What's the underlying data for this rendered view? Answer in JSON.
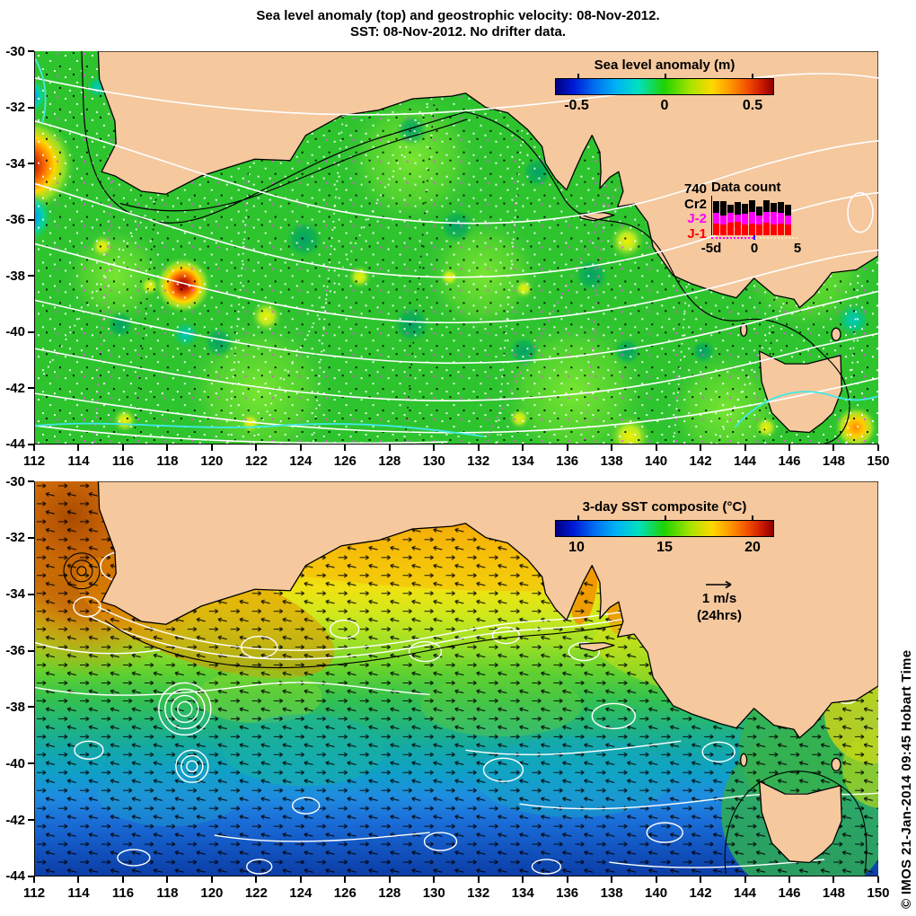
{
  "header": {
    "title_line1": "Sea level anomaly (top) and geostrophic velocity: 08-Nov-2012.",
    "title_line2": "SST: 08-Nov-2012. No drifter data."
  },
  "watermark": "© IMOS 21-Jan-2014 09:45 Hobart Time",
  "axes": {
    "x_ticks": [
      "112",
      "114",
      "116",
      "118",
      "120",
      "122",
      "124",
      "126",
      "128",
      "130",
      "132",
      "134",
      "136",
      "138",
      "140",
      "142",
      "144",
      "146",
      "148",
      "150"
    ],
    "y_ticks": [
      "-30",
      "-32",
      "-34",
      "-36",
      "-38",
      "-40",
      "-42",
      "-44"
    ]
  },
  "sla_panel": {
    "colorbar": {
      "title": "Sea level anomaly (m)",
      "tick_labels": [
        "-0.5",
        "0",
        "0.5"
      ]
    },
    "data_count": {
      "title": "Data count",
      "legend": [
        {
          "label": "740",
          "color": "#000000"
        },
        {
          "label": "Cr2",
          "color": "#000000"
        },
        {
          "label": "J-2",
          "color": "#ff00ff"
        },
        {
          "label": "J-1",
          "color": "#ff0000"
        }
      ],
      "bars": [
        {
          "r": 13,
          "m": 12,
          "k": 13
        },
        {
          "r": 12,
          "m": 10,
          "k": 16
        },
        {
          "r": 14,
          "m": 11,
          "k": 9
        },
        {
          "r": 15,
          "m": 8,
          "k": 14
        },
        {
          "r": 12,
          "m": 12,
          "k": 11
        },
        {
          "r": 13,
          "m": 13,
          "k": 13
        },
        {
          "r": 12,
          "m": 10,
          "k": 10
        },
        {
          "r": 14,
          "m": 12,
          "k": 13
        },
        {
          "r": 12,
          "m": 14,
          "k": 10
        },
        {
          "r": 13,
          "m": 12,
          "k": 12
        },
        {
          "r": 12,
          "m": 10,
          "k": 12
        }
      ],
      "x_tick_labels": [
        "-5d",
        "0",
        "5"
      ]
    }
  },
  "sst_panel": {
    "colorbar": {
      "title": "3-day SST composite (°C)",
      "tick_labels": [
        "10",
        "15",
        "20"
      ]
    },
    "velocity_scale": {
      "label": "1 m/s",
      "sublabel": "(24hrs)"
    }
  },
  "chart_data": [
    {
      "type": "heatmap",
      "title": "Sea level anomaly (top) and geostrophic velocity: 08-Nov-2012.",
      "region": "Southern Australia, Great Australian Bight and Tasmania",
      "xlim": [
        112,
        150
      ],
      "x_ticks": [
        112,
        114,
        116,
        118,
        120,
        122,
        124,
        126,
        128,
        130,
        132,
        134,
        136,
        138,
        140,
        142,
        144,
        146,
        148,
        150
      ],
      "ylim": [
        -44,
        -30
      ],
      "y_ticks": [
        -44,
        -42,
        -40,
        -38,
        -36,
        -34,
        -32,
        -30
      ],
      "colorbar": {
        "label": "Sea level anomaly (m)",
        "ticks": [
          -0.5,
          0,
          0.5
        ],
        "colormap": "jet"
      },
      "notable_features": [
        "strong positive anomaly ~+0.5 m near 112E 34S",
        "positive anomaly ~+0.3 m near 118.5E 38S",
        "negative anomalies near 112E 31.5S and 112E 35.8S",
        "weak anomalies (about 0 to +0.1 m) across most of the Bight",
        "white sea-level contours and altimeter ground-track dots overlaid"
      ]
    },
    {
      "type": "heatmap",
      "title": "SST: 08-Nov-2012. No drifter data.",
      "xlim": [
        112,
        150
      ],
      "x_ticks": [
        112,
        114,
        116,
        118,
        120,
        122,
        124,
        126,
        128,
        130,
        132,
        134,
        136,
        138,
        140,
        142,
        144,
        146,
        148,
        150
      ],
      "ylim": [
        -44,
        -30
      ],
      "y_ticks": [
        -44,
        -42,
        -40,
        -38,
        -36,
        -34,
        -32,
        -30
      ],
      "colorbar": {
        "label": "3-day SST composite (°C)",
        "ticks": [
          10,
          15,
          20
        ],
        "colormap": "jet"
      },
      "notable_features": [
        "warm ~21-22°C water along the west coast near 112-116E (Leeuwin Current)",
        "~19-20°C band along the Bight coast and inside the gulfs",
        "SST decreases southward to ~10°C at 44S",
        "~14-16°C green waters around Tasmania, warmer patch east of Tasmania",
        "geostrophic velocity vectors (black arrows) and white SLA contours overlaid"
      ]
    },
    {
      "type": "bar",
      "title": "Data count",
      "stacked": true,
      "categories_days": [
        -5,
        -4,
        -3,
        -2,
        -1,
        0,
        1,
        2,
        3,
        4,
        5
      ],
      "series": [
        {
          "name": "J-1",
          "color": "#ff0000",
          "values": [
            13,
            12,
            14,
            15,
            12,
            13,
            12,
            14,
            12,
            13,
            12
          ]
        },
        {
          "name": "J-2",
          "color": "#ff00ff",
          "values": [
            12,
            10,
            11,
            8,
            12,
            13,
            10,
            12,
            14,
            12,
            10
          ]
        },
        {
          "name": "Cr2",
          "color": "#000000",
          "values": [
            13,
            16,
            9,
            14,
            11,
            13,
            10,
            13,
            10,
            12,
            12
          ]
        }
      ],
      "total_label": "740",
      "x_tick_labels": [
        "-5d",
        "0",
        "5"
      ]
    }
  ]
}
